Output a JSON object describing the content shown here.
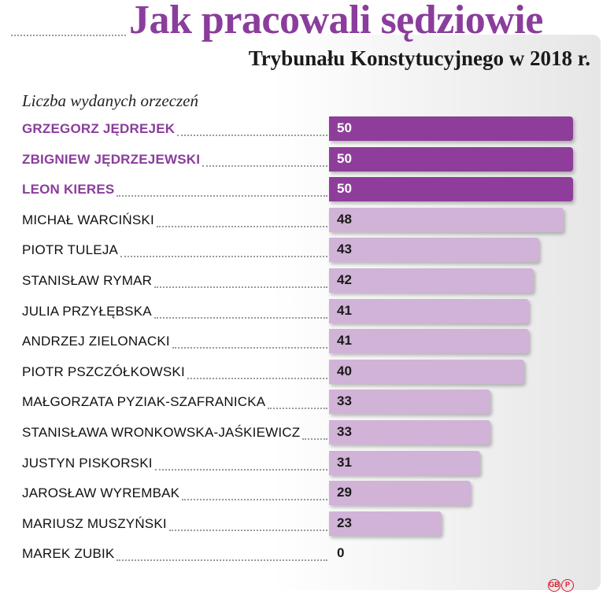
{
  "title": "Jak pracowali sędziowie",
  "subtitle": "Trybunału Konstytucyjnego w 2018 r.",
  "caption": "Liczba wydanych orzeczeń",
  "logo": {
    "left": "GB",
    "right": "P"
  },
  "colors": {
    "highlight_bar": "#8e3e9a",
    "regular_bar": "#d1b3d7",
    "highlight_text": "#8a3d9c",
    "value_on_highlight": "#ffffff",
    "value_on_regular": "#1a1a1a"
  },
  "chart_data": {
    "type": "bar",
    "orientation": "horizontal",
    "xlim": [
      0,
      50
    ],
    "grid": false,
    "categories": [
      "GRZEGORZ JĘDREJEK",
      "ZBIGNIEW JĘDRZEJEWSKI",
      "LEON KIERES",
      "MICHAŁ WARCIŃSKI",
      "PIOTR TULEJA",
      "STANISŁAW RYMAR",
      "JULIA PRZYŁĘBSKA",
      "ANDRZEJ ZIELONACKI",
      "PIOTR PSZCZÓŁKOWSKI",
      "MAŁGORZATA PYZIAK-SZAFRANICKA",
      "STANISŁAWA WRONKOWSKA-JAŚKIEWICZ",
      "JUSTYN PISKORSKI",
      "JAROSŁAW WYREMBAK",
      "MARIUSZ MUSZYŃSKI",
      "MAREK ZUBIK"
    ],
    "values": [
      50,
      50,
      50,
      48,
      43,
      42,
      41,
      41,
      40,
      33,
      33,
      31,
      29,
      23,
      0
    ],
    "highlighted": [
      true,
      true,
      true,
      false,
      false,
      false,
      false,
      false,
      false,
      false,
      false,
      false,
      false,
      false,
      false
    ]
  }
}
